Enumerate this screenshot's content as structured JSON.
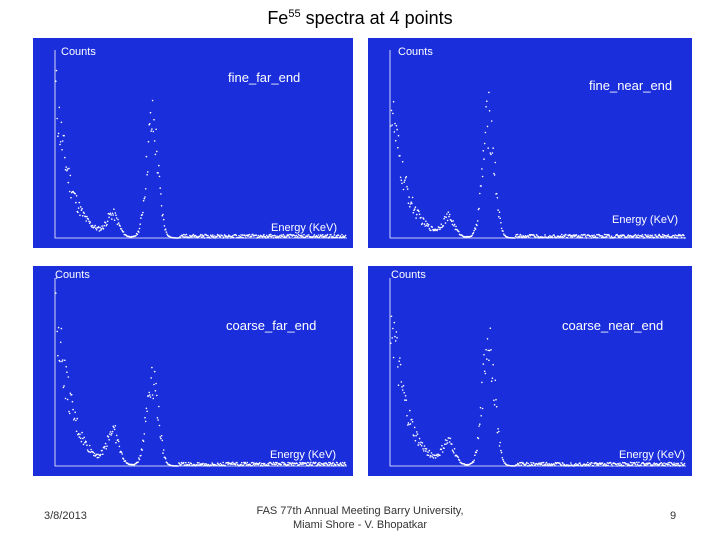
{
  "slide": {
    "title_main": "Fe",
    "title_sup": "55",
    "title_rest": " spectra at 4 points",
    "date": "3/8/2013",
    "footer_line1": "FAS 77th Annual Meeting Barry University,",
    "footer_line2": "Miami Shore - V. Bhopatkar",
    "page_number": "9"
  },
  "colors": {
    "panel_bg": "#1a2edc",
    "points": "#ffffff",
    "text": "#ffffff"
  },
  "chart_data": [
    {
      "type": "scatter",
      "name_label": "fine_far_end",
      "ylabel": "Counts",
      "xlabel": "Energy (KeV)",
      "peaks": [
        {
          "center": 5.9,
          "height": 78
        },
        {
          "center": 3.5,
          "height": 14
        }
      ],
      "decay_start": 105
    },
    {
      "type": "scatter",
      "name_label": "fine_near_end",
      "ylabel": "Counts",
      "xlabel": "Energy (KeV)",
      "peaks": [
        {
          "center": 5.9,
          "height": 80
        },
        {
          "center": 3.5,
          "height": 12
        }
      ],
      "decay_start": 100
    },
    {
      "type": "scatter",
      "name_label": "coarse_far_end",
      "ylabel": "Counts",
      "xlabel": "Energy (KeV)",
      "peaks": [
        {
          "center": 5.9,
          "height": 62
        },
        {
          "center": 3.5,
          "height": 22
        }
      ],
      "decay_start": 120
    },
    {
      "type": "scatter",
      "name_label": "coarse_near_end",
      "ylabel": "Counts",
      "xlabel": "Energy (KeV)",
      "peaks": [
        {
          "center": 5.9,
          "height": 88
        },
        {
          "center": 3.5,
          "height": 14
        }
      ],
      "decay_start": 115
    }
  ]
}
